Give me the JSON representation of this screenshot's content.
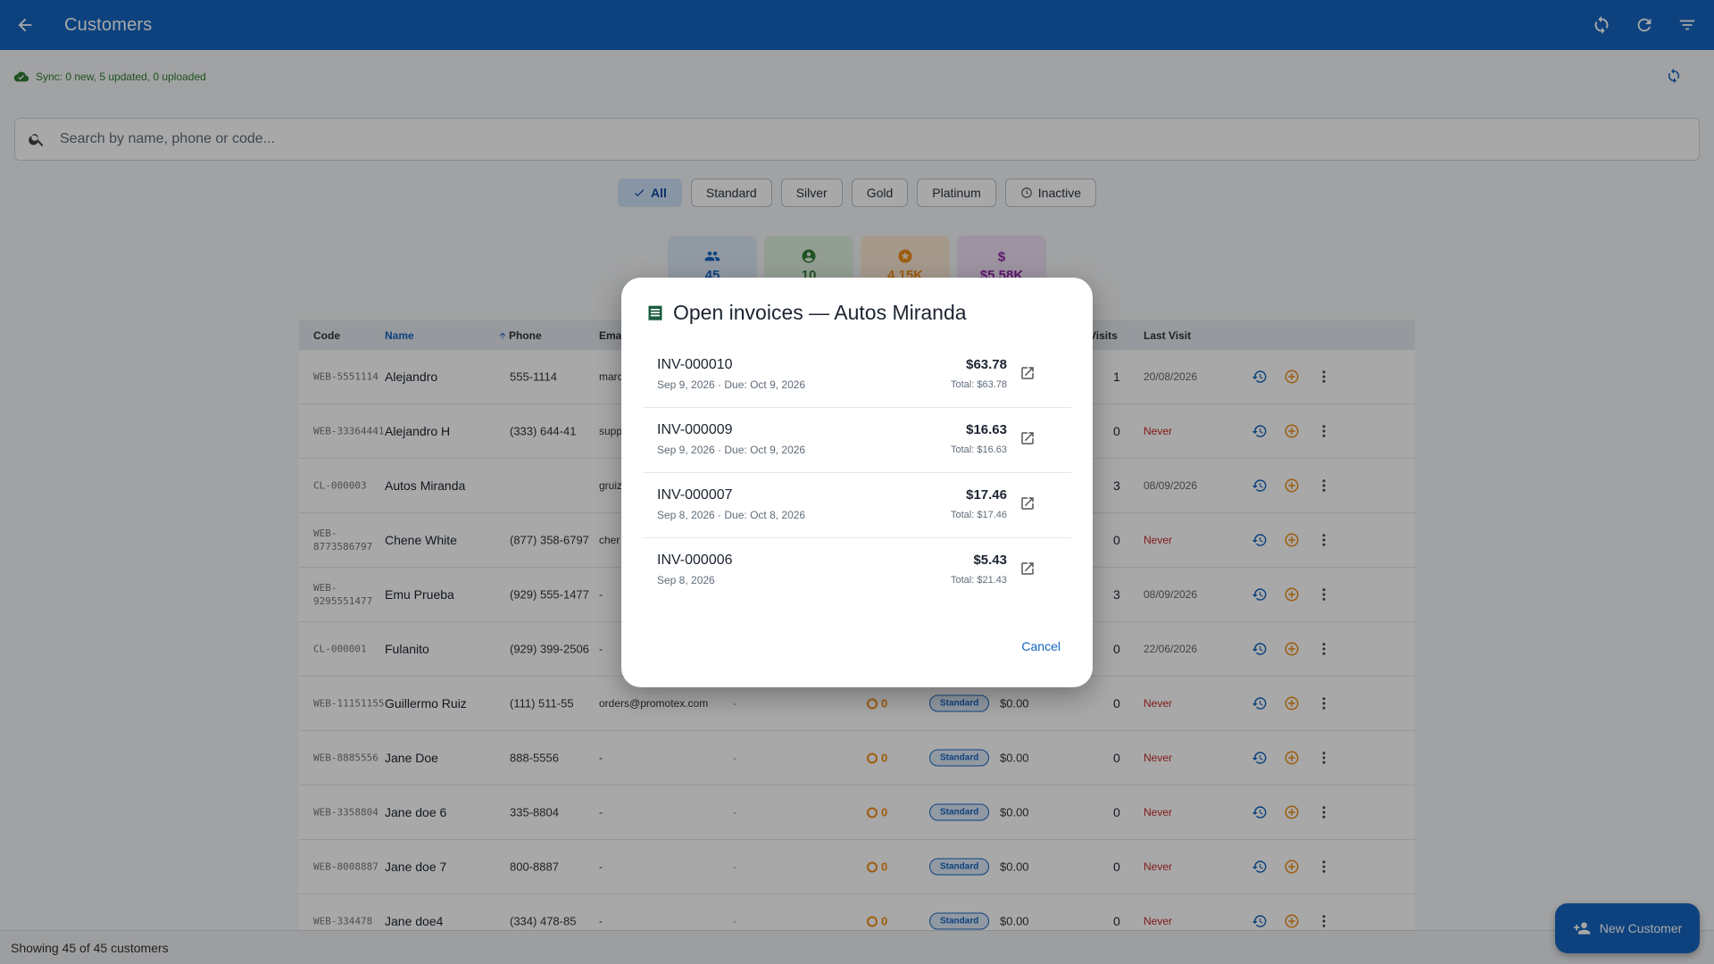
{
  "appbar": {
    "title": "Customers"
  },
  "sync": {
    "text": "Sync: 0 new, 5 updated, 0 uploaded"
  },
  "search": {
    "placeholder": "Search by name, phone or code..."
  },
  "filters": [
    "All",
    "Standard",
    "Silver",
    "Gold",
    "Platinum",
    "Inactive"
  ],
  "stats": [
    "45",
    "10",
    "4.15K",
    "$5.58K"
  ],
  "table": {
    "headers": {
      "code": "Code",
      "name": "Name",
      "phone": "Phone",
      "email": "Ema",
      "visits": "Visits",
      "last_visit": "Last Visit"
    },
    "rows": [
      {
        "code": "WEB-5551114",
        "name": "Alejandro",
        "phone": "555-1114",
        "email": "marc",
        "points": "",
        "tier": "",
        "balance": "",
        "visits": "1",
        "last": "20/08/2026"
      },
      {
        "code": "WEB-33364441",
        "name": "Alejandro H",
        "phone": "(333) 644-41",
        "email": "supp",
        "points": "",
        "tier": "",
        "balance": "",
        "visits": "0",
        "last": "Never"
      },
      {
        "code": "CL-000003",
        "name": "Autos Miranda",
        "phone": "",
        "email": "gruiz",
        "points": "",
        "tier": "",
        "balance": "",
        "visits": "3",
        "last": "08/09/2026"
      },
      {
        "code": "WEB-8773586797",
        "name": "Chene White",
        "phone": "(877) 358-6797",
        "email": "cher",
        "points": "",
        "tier": "",
        "balance": "",
        "visits": "0",
        "last": "Never"
      },
      {
        "code": "WEB-9295551477",
        "name": "Emu Prueba",
        "phone": "(929) 555-1477",
        "email": "-",
        "points": "",
        "tier": "",
        "balance": "",
        "visits": "3",
        "last": "08/09/2026"
      },
      {
        "code": "CL-000001",
        "name": "Fulanito",
        "phone": "(929) 399-2506",
        "email": "-",
        "points": "",
        "tier": "",
        "balance": "",
        "visits": "0",
        "last": "22/06/2026"
      },
      {
        "code": "WEB-11151155",
        "name": "Guillermo Ruiz",
        "phone": "(111) 511-55",
        "email": "orders@promotex.com",
        "dash": "-",
        "points": "0",
        "tier": "Standard",
        "balance": "$0.00",
        "visits": "0",
        "last": "Never"
      },
      {
        "code": "WEB-8885556",
        "name": "Jane Doe",
        "phone": "888-5556",
        "email": "-",
        "dash": "-",
        "points": "0",
        "tier": "Standard",
        "balance": "$0.00",
        "visits": "0",
        "last": "Never"
      },
      {
        "code": "WEB-3358804",
        "name": "Jane doe 6",
        "phone": "335-8804",
        "email": "-",
        "dash": "-",
        "points": "0",
        "tier": "Standard",
        "balance": "$0.00",
        "visits": "0",
        "last": "Never"
      },
      {
        "code": "WEB-8008887",
        "name": "Jane doe 7",
        "phone": "800-8887",
        "email": "-",
        "dash": "-",
        "points": "0",
        "tier": "Standard",
        "balance": "$0.00",
        "visits": "0",
        "last": "Never"
      },
      {
        "code": "WEB-334478",
        "name": "Jane doe4",
        "phone": "(334) 478-85",
        "email": "-",
        "dash": "-",
        "points": "0",
        "tier": "Standard",
        "balance": "$0.00",
        "visits": "0",
        "last": "Never"
      }
    ]
  },
  "footer": {
    "text": "Showing 45 of 45 customers"
  },
  "fab": {
    "label": "New Customer"
  },
  "dialog": {
    "title": "Open invoices — Autos Miranda",
    "invoices": [
      {
        "number": "INV-000010",
        "dates": "Sep 9, 2026 · Due: Oct 9, 2026",
        "amount": "$63.78",
        "total": "Total: $63.78"
      },
      {
        "number": "INV-000009",
        "dates": "Sep 9, 2026 · Due: Oct 9, 2026",
        "amount": "$16.63",
        "total": "Total: $16.63"
      },
      {
        "number": "INV-000007",
        "dates": "Sep 8, 2026 · Due: Oct 8, 2026",
        "amount": "$17.46",
        "total": "Total: $17.46"
      },
      {
        "number": "INV-000006",
        "dates": "Sep 8, 2026",
        "amount": "$5.43",
        "total": "Total: $21.43"
      }
    ],
    "cancel_label": "Cancel"
  }
}
